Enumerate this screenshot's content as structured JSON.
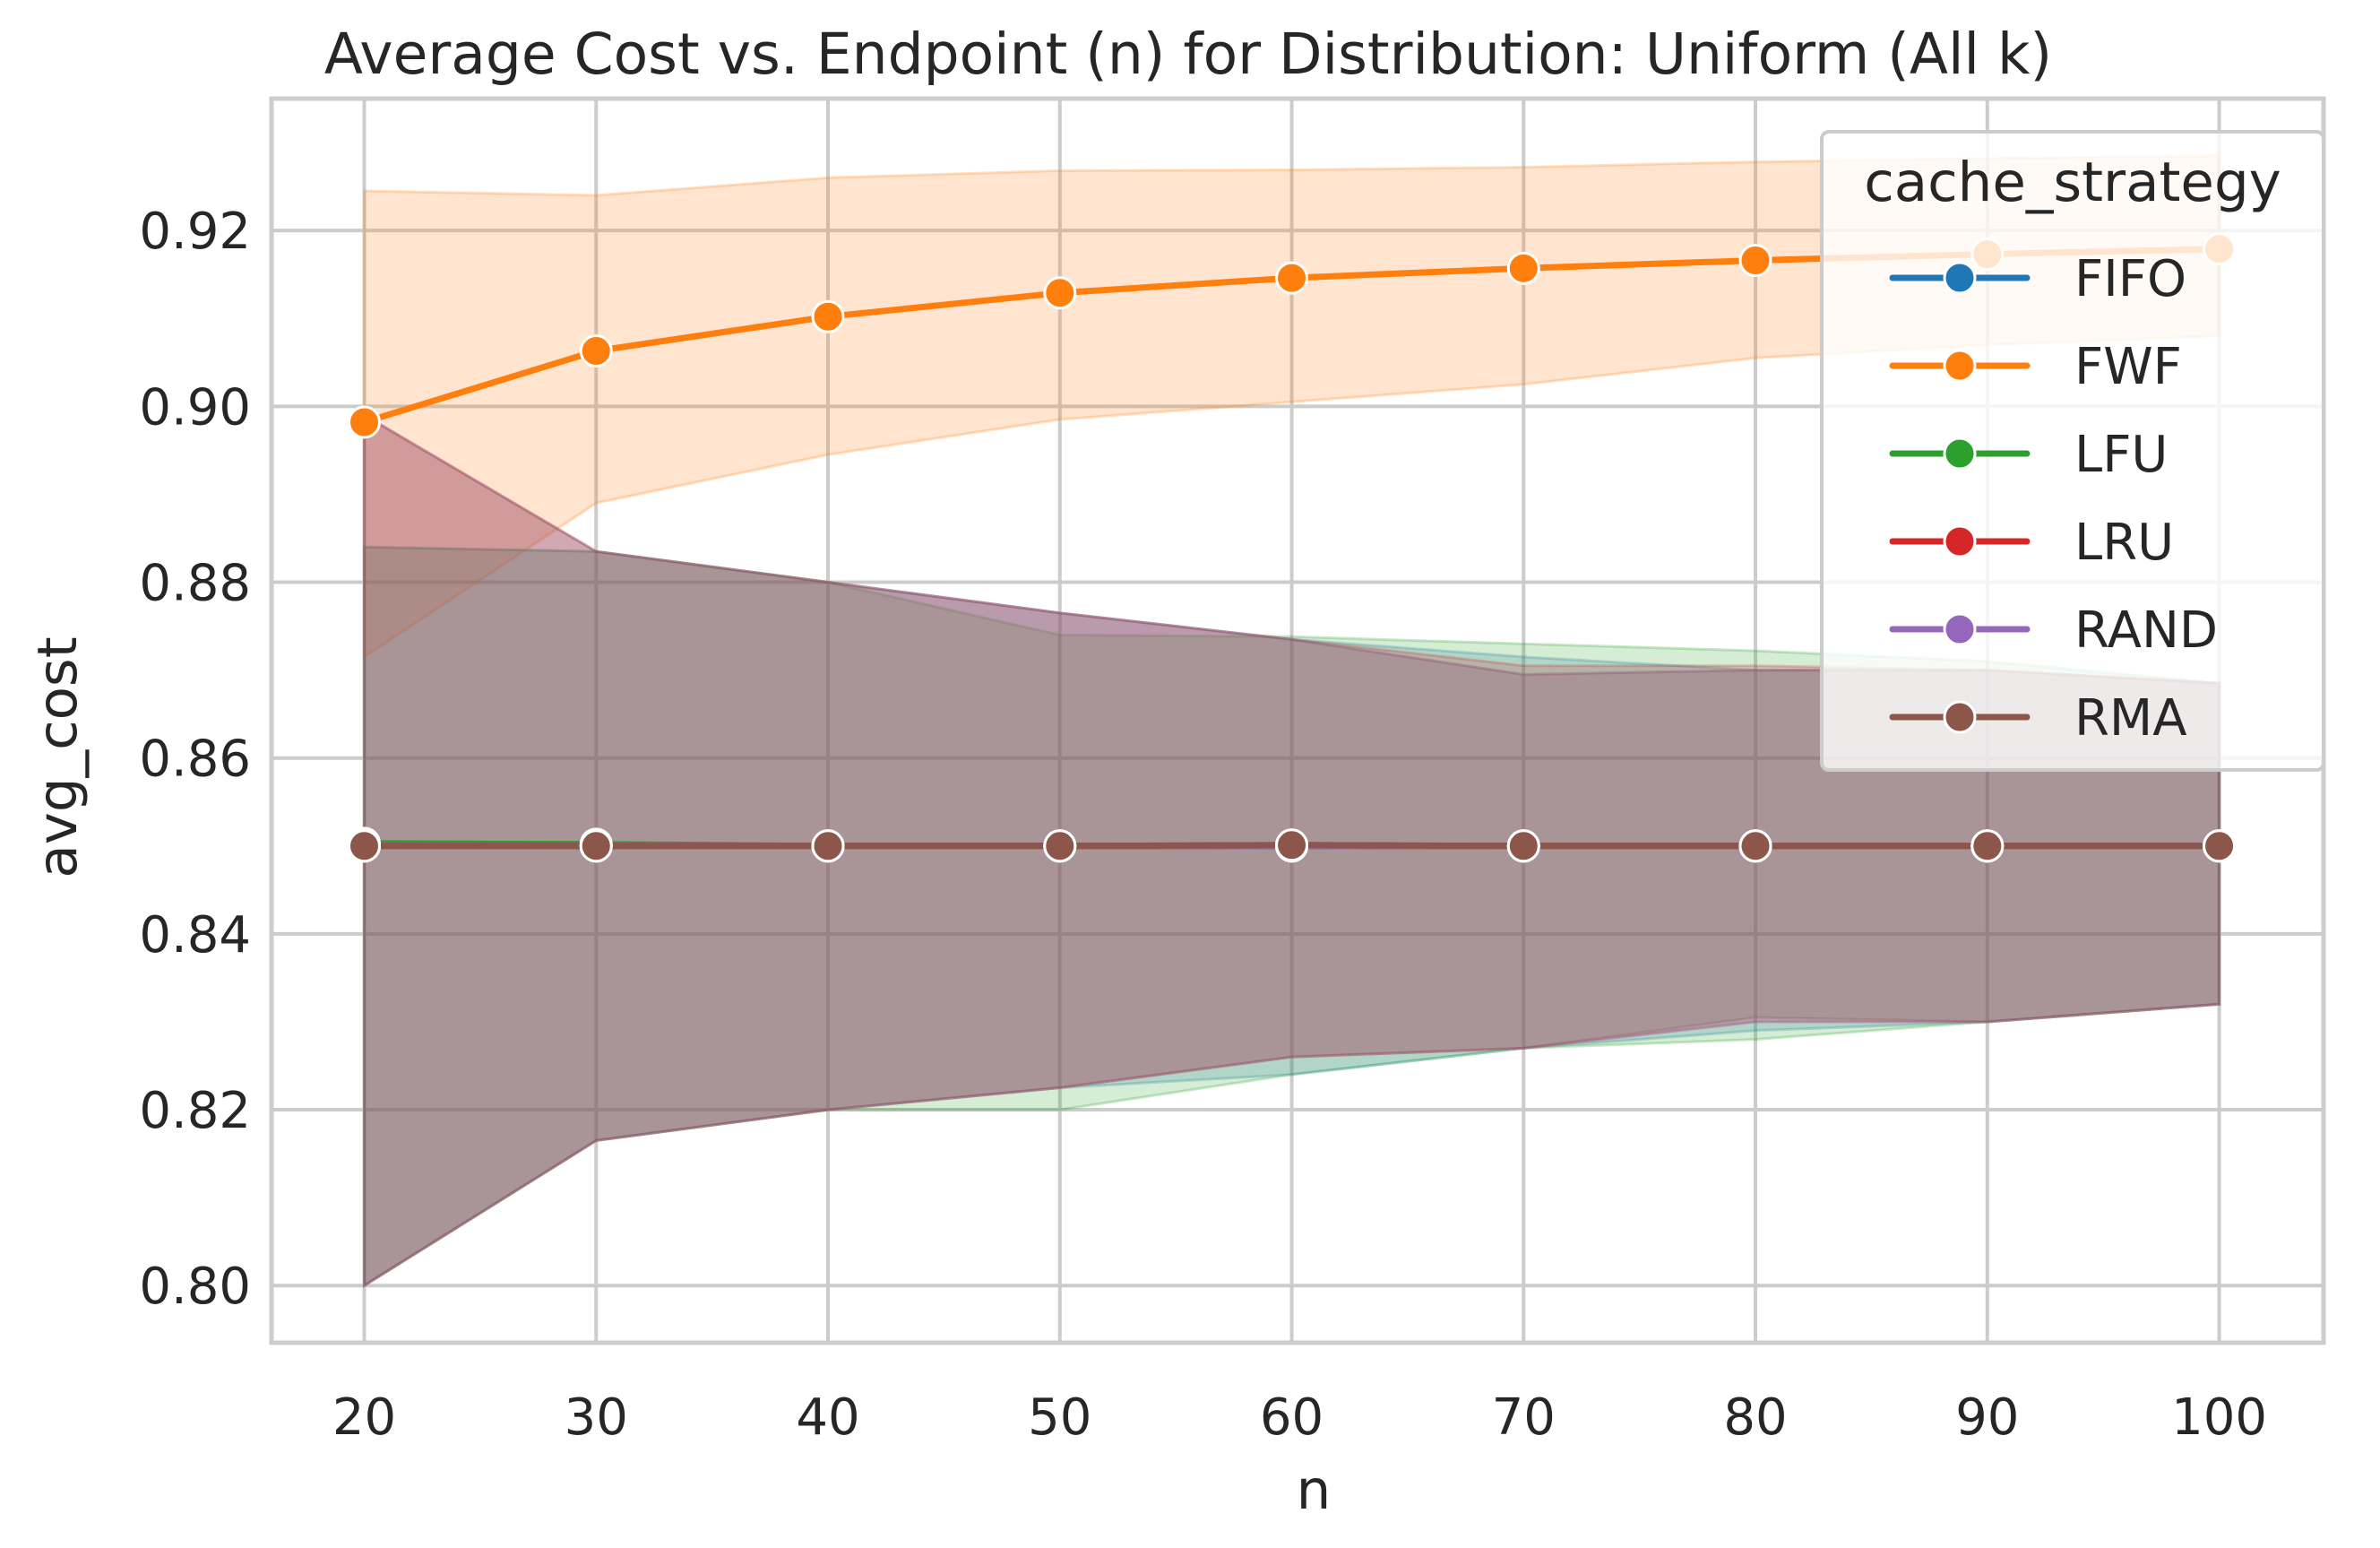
{
  "chart_data": {
    "type": "line",
    "title": "Average Cost vs. Endpoint (n) for Distribution: Uniform (All k)",
    "xlabel": "n",
    "ylabel": "avg_cost",
    "x": [
      20,
      30,
      40,
      50,
      60,
      70,
      80,
      90,
      100
    ],
    "xlim": [
      16,
      104.5
    ],
    "ylim": [
      0.7935,
      0.935
    ],
    "xticks": [
      "20",
      "30",
      "40",
      "50",
      "60",
      "70",
      "80",
      "90",
      "100"
    ],
    "yticks": [
      "0.80",
      "0.82",
      "0.84",
      "0.86",
      "0.88",
      "0.90",
      "0.92"
    ],
    "grid": true,
    "legend_title": "cache_strategy",
    "legend_position": "upper right",
    "series": [
      {
        "name": "FIFO",
        "color": "#1f77b4",
        "values": [
          0.85,
          0.85,
          0.85,
          0.85,
          0.85,
          0.85,
          0.85,
          0.85,
          0.85
        ],
        "ci_low": [
          0.8,
          0.8165,
          0.82,
          0.8225,
          0.824,
          0.827,
          0.829,
          0.83,
          0.832
        ],
        "ci_high": [
          0.884,
          0.8835,
          0.88,
          0.8765,
          0.8735,
          0.8715,
          0.87,
          0.87,
          0.8685
        ]
      },
      {
        "name": "FWF",
        "color": "#ff7f0e",
        "values": [
          0.8982,
          0.9063,
          0.9102,
          0.9129,
          0.9146,
          0.9157,
          0.9166,
          0.9173,
          0.9179
        ],
        "ci_low": [
          0.8715,
          0.889,
          0.8945,
          0.8985,
          0.9005,
          0.9025,
          0.9055,
          0.907,
          0.908
        ],
        "ci_high": [
          0.9245,
          0.924,
          0.926,
          0.9268,
          0.9269,
          0.9272,
          0.9278,
          0.9282,
          0.9285
        ]
      },
      {
        "name": "LFU",
        "color": "#2ca02c",
        "values": [
          0.8503,
          0.8502,
          0.85,
          0.85,
          0.8501,
          0.85,
          0.85,
          0.85,
          0.85
        ],
        "ci_low": [
          0.8,
          0.8165,
          0.82,
          0.82,
          0.824,
          0.827,
          0.828,
          0.83,
          0.832
        ],
        "ci_high": [
          0.884,
          0.8835,
          0.88,
          0.874,
          0.8738,
          0.873,
          0.8722,
          0.871,
          0.8685
        ]
      },
      {
        "name": "LRU",
        "color": "#d62728",
        "values": [
          0.85,
          0.85,
          0.85,
          0.85,
          0.85,
          0.85,
          0.85,
          0.85,
          0.85
        ],
        "ci_low": [
          0.8,
          0.8165,
          0.82,
          0.8225,
          0.826,
          0.827,
          0.83,
          0.83,
          0.832
        ],
        "ci_high": [
          0.899,
          0.8835,
          0.88,
          0.8765,
          0.8735,
          0.8705,
          0.8705,
          0.87,
          0.8685
        ]
      },
      {
        "name": "RAND",
        "color": "#9467bd",
        "values": [
          0.85,
          0.85,
          0.85,
          0.85,
          0.85,
          0.85,
          0.85,
          0.85,
          0.85
        ],
        "ci_low": [
          0.8,
          0.8165,
          0.82,
          0.8225,
          0.826,
          0.827,
          0.83,
          0.83,
          0.832
        ],
        "ci_high": [
          0.899,
          0.8835,
          0.88,
          0.8765,
          0.8735,
          0.8695,
          0.87,
          0.87,
          0.8685
        ]
      },
      {
        "name": "RMA",
        "color": "#8c564b",
        "values": [
          0.85,
          0.85,
          0.85,
          0.85,
          0.8501,
          0.85,
          0.85,
          0.85,
          0.85
        ],
        "ci_low": [
          0.8,
          0.8165,
          0.82,
          0.8225,
          0.826,
          0.827,
          0.8305,
          0.83,
          0.832
        ],
        "ci_high": [
          0.899,
          0.8835,
          0.88,
          0.8765,
          0.8735,
          0.8695,
          0.87,
          0.87,
          0.8685
        ]
      }
    ]
  }
}
